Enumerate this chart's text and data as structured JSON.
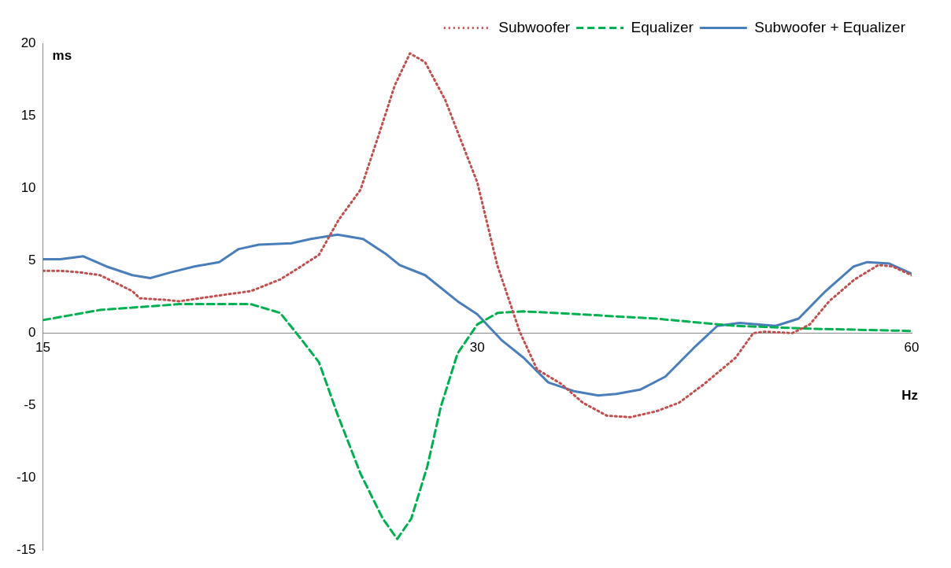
{
  "chart_data": {
    "type": "line",
    "xlabel": "Hz",
    "ylabel": "ms",
    "log": "x",
    "xlim": [
      15,
      60
    ],
    "xticks": [
      15,
      30,
      60
    ],
    "ylim": [
      -15,
      20
    ],
    "yticks": [
      -15,
      -10,
      -5,
      0,
      5,
      10,
      15,
      20
    ],
    "grid": false,
    "legend": "top right",
    "marker": "none",
    "series": [
      {
        "name": "Subwoofer",
        "color": "#c0504d",
        "line_style": "dotted",
        "x": [
          15,
          15.42,
          15.9,
          16.43,
          17.3,
          17.51,
          18.2,
          18.65,
          19.87,
          20.9,
          21.9,
          22.56,
          23.3,
          24.04,
          24.9,
          25.6,
          26.3,
          26.94,
          27.6,
          28.5,
          30,
          30.97,
          32.1,
          33,
          34.3,
          35.5,
          36.9,
          38.3,
          39.9,
          41.4,
          43.1,
          45.3,
          46.6,
          47.5,
          49.6,
          51,
          52.6,
          54.77,
          56.9,
          58.2,
          60
        ],
        "values": [
          4.3,
          4.3,
          4.2,
          4,
          2.9,
          2.4,
          2.3,
          2.2,
          2.6,
          2.9,
          3.7,
          4.5,
          5.4,
          7.8,
          9.9,
          13.5,
          17.1,
          19.3,
          18.7,
          16.1,
          10.4,
          4.7,
          0.1,
          -2.5,
          -3.5,
          -4.8,
          -5.7,
          -5.8,
          -5.4,
          -4.8,
          -3.5,
          -1.7,
          0,
          0.1,
          0,
          0.6,
          2.2,
          3.7,
          4.7,
          4.6,
          4
        ]
      },
      {
        "name": "Equalizer",
        "color": "#00b050",
        "line_style": "dashed",
        "x": [
          15,
          16.43,
          18.65,
          20.9,
          21.9,
          22.56,
          23.3,
          24.0,
          24.9,
          25.8,
          26.4,
          27.0,
          27.7,
          28.3,
          29.07,
          30,
          31,
          32.3,
          33.9,
          39.9,
          45.3,
          51.4,
          60
        ],
        "values": [
          0.9,
          1.6,
          2,
          2,
          1.4,
          -0.2,
          -2,
          -5.6,
          -9.7,
          -12.8,
          -14.2,
          -12.8,
          -9.2,
          -5.1,
          -1.4,
          0.6,
          1.4,
          1.5,
          1.4,
          1,
          0.5,
          0.3,
          0.15
        ]
      },
      {
        "name": "Subwoofer + Equalizer",
        "color": "#4a7ebb",
        "line_style": "solid",
        "x": [
          15,
          15.42,
          16.0,
          16.6,
          17.3,
          17.8,
          18.4,
          19.1,
          19.87,
          20.5,
          21.17,
          22.3,
          23.0,
          24.0,
          25.0,
          25.9,
          26.5,
          27.6,
          29.07,
          30,
          31.2,
          32.3,
          33.6,
          35.0,
          36.4,
          37.45,
          38.9,
          40.5,
          42.5,
          44.0,
          45.6,
          48.3,
          50.1,
          52.3,
          54.7,
          55.9,
          57.9,
          60
        ],
        "values": [
          5.1,
          5.1,
          5.3,
          4.6,
          4,
          3.8,
          4.2,
          4.6,
          4.9,
          5.8,
          6.1,
          6.2,
          6.5,
          6.8,
          6.5,
          5.5,
          4.7,
          4,
          2.2,
          1.3,
          -0.5,
          -1.7,
          -3.4,
          -4,
          -4.3,
          -4.2,
          -3.9,
          -3,
          -0.9,
          0.5,
          0.7,
          0.5,
          1,
          2.9,
          4.6,
          4.9,
          4.8,
          4.1
        ]
      }
    ]
  }
}
